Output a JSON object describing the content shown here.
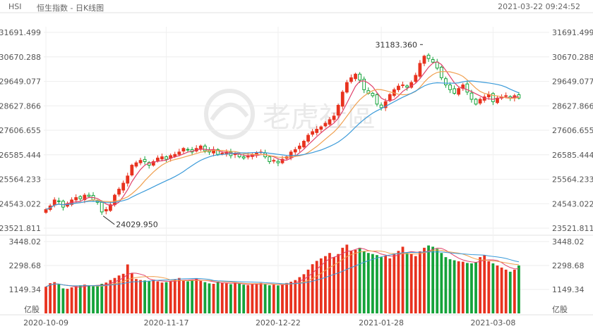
{
  "header": {
    "symbol": "HSI",
    "title": "恒生指数 - 日K线图",
    "timestamp": "2021-03-22 09:24:52"
  },
  "watermark": "老虎社區",
  "colors": {
    "up": "#e8321e",
    "down": "#15a33a",
    "ma5": "#e0406a",
    "ma10": "#f0a050",
    "ma20": "#3a9ad9"
  },
  "chart_data": {
    "type": "candlestick",
    "price_axis": {
      "ticks": [
        "31691.499",
        "30670.288",
        "29649.077",
        "28627.866",
        "27606.655",
        "26585.444",
        "25564.233",
        "24543.022",
        "23521.811"
      ],
      "ylim": [
        23521.811,
        31691.499
      ]
    },
    "volume_axis": {
      "ticks": [
        "3448.02",
        "2298.68",
        "1149.34"
      ],
      "unit": "亿股",
      "ylim": [
        0,
        3448.02
      ]
    },
    "date_labels": [
      {
        "index": 0,
        "label": "2020-10-09"
      },
      {
        "index": 28,
        "label": "2020-11-17"
      },
      {
        "index": 54,
        "label": "2020-12-22"
      },
      {
        "index": 78,
        "label": "2021-01-28"
      },
      {
        "index": 104,
        "label": "2021-03-08"
      }
    ],
    "annotations": [
      {
        "label": "31183.360",
        "index": 88,
        "value": 31183.36,
        "side": "left"
      },
      {
        "label": "24029.950",
        "index": 13,
        "value": 24029.95,
        "side": "right"
      }
    ],
    "closes": [
      24300,
      24450,
      24700,
      24650,
      24400,
      24550,
      24700,
      24800,
      24750,
      24900,
      24850,
      24700,
      24600,
      24200,
      24300,
      24500,
      24900,
      25150,
      25400,
      25700,
      26150,
      26250,
      26350,
      26300,
      26150,
      26300,
      26450,
      26500,
      26400,
      26550,
      26600,
      26700,
      26850,
      26800,
      26700,
      26850,
      26950,
      26750,
      26700,
      26800,
      26600,
      26650,
      26700,
      26550,
      26650,
      26500,
      26450,
      26550,
      26600,
      26650,
      26700,
      26500,
      26300,
      26350,
      26250,
      26400,
      26500,
      26700,
      26800,
      26950,
      27150,
      27400,
      27550,
      27650,
      27750,
      27900,
      28050,
      28200,
      28650,
      29200,
      29600,
      29800,
      29950,
      29700,
      29300,
      29150,
      29050,
      28700,
      28550,
      28800,
      29100,
      29300,
      29450,
      29500,
      29400,
      29600,
      29900,
      30400,
      30700,
      30600,
      30450,
      30200,
      29800,
      29500,
      29300,
      29150,
      29350,
      29500,
      29200,
      28900,
      28700,
      28900,
      29000,
      29100,
      28800,
      28950,
      29000,
      29050,
      28950,
      29050,
      28950
    ],
    "volumes": [
      1280,
      1450,
      1500,
      1420,
      1200,
      1180,
      1250,
      1300,
      1350,
      1380,
      1340,
      1300,
      1360,
      1420,
      1480,
      1600,
      1700,
      1820,
      1900,
      2350,
      1920,
      1650,
      1600,
      1580,
      1560,
      1620,
      1540,
      1480,
      1500,
      1560,
      1620,
      1700,
      1580,
      1540,
      1620,
      1680,
      1560,
      1500,
      1440,
      1420,
      1520,
      1460,
      1440,
      1400,
      1460,
      1420,
      1380,
      1360,
      1420,
      1440,
      1460,
      1400,
      1350,
      1380,
      1340,
      1400,
      1460,
      1520,
      1600,
      1740,
      1880,
      2100,
      2360,
      2520,
      2640,
      2750,
      2900,
      2700,
      2850,
      3150,
      3300,
      3000,
      3050,
      3150,
      2980,
      2900,
      2850,
      2800,
      2700,
      2760,
      2640,
      2880,
      3000,
      3200,
      2900,
      2850,
      2750,
      2980,
      3150,
      3260,
      3200,
      3100,
      2900,
      2700,
      2600,
      2550,
      2500,
      2480,
      2420,
      2400,
      2450,
      2700,
      2800,
      2500,
      2400,
      2300,
      2200,
      2100,
      2000,
      2100,
      2300
    ]
  }
}
